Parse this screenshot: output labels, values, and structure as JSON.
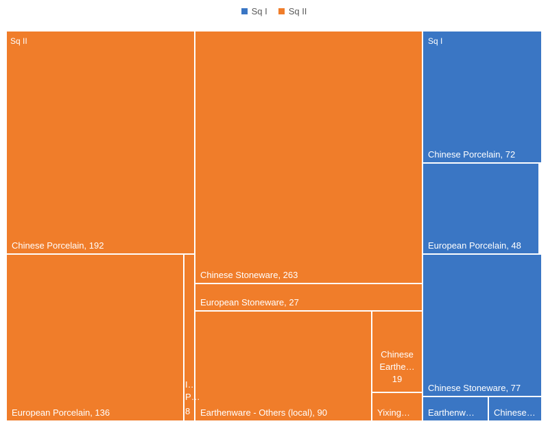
{
  "legend": [
    {
      "name": "Sq I",
      "color": "#3A76C4"
    },
    {
      "name": "Sq II",
      "color": "#F07D2A"
    }
  ],
  "chart_data": {
    "type": "treemap",
    "groups": [
      {
        "name": "Sq II",
        "color": "#F07D2A",
        "items": [
          {
            "label": "Chinese Porcelain, 192",
            "value": 192
          },
          {
            "label": "European Porcelain, 136",
            "value": 136
          },
          {
            "label": "I…",
            "value": null
          },
          {
            "label": "P…",
            "value": null
          },
          {
            "label": "8",
            "value": 8
          },
          {
            "label": "Chinese Stoneware, 263",
            "value": 263
          },
          {
            "label": "European Stoneware, 27",
            "value": 27
          },
          {
            "label": "Earthenware - Others (local), 90",
            "value": 90
          },
          {
            "label": "Chinese Earthe… 19",
            "value": 19
          },
          {
            "label": "Yixing…",
            "value": null
          }
        ]
      },
      {
        "name": "Sq I",
        "color": "#3A76C4",
        "items": [
          {
            "label": "Chinese Porcelain, 72",
            "value": 72
          },
          {
            "label": "European Porcelain, 48",
            "value": 48
          },
          {
            "label": "Chinese Stoneware, 77",
            "value": 77
          },
          {
            "label": "Earthenw…",
            "value": null
          },
          {
            "label": "Chinese…",
            "value": null
          }
        ]
      }
    ]
  }
}
